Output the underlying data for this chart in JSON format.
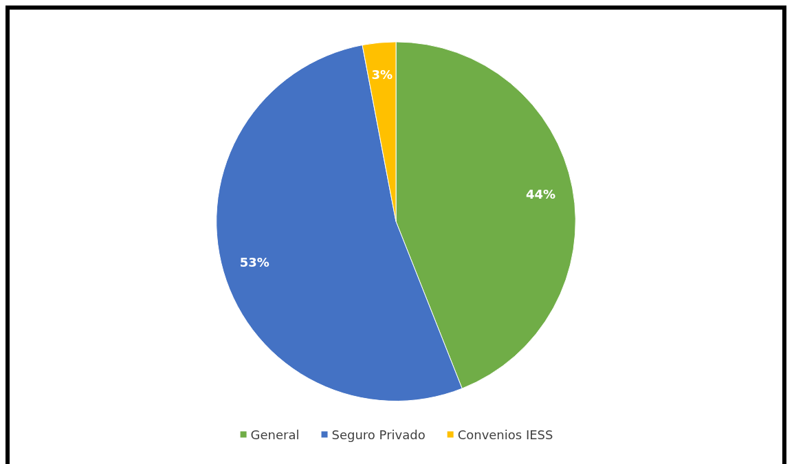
{
  "chart_data": {
    "type": "pie",
    "categories": [
      "General",
      "Seguro Privado",
      "Convenios IESS"
    ],
    "values": [
      44,
      53,
      3
    ],
    "value_labels": [
      "44%",
      "53%",
      "3%"
    ],
    "colors": [
      "#70ad47",
      "#4472c4",
      "#ffc000"
    ],
    "legend": "bottom"
  }
}
